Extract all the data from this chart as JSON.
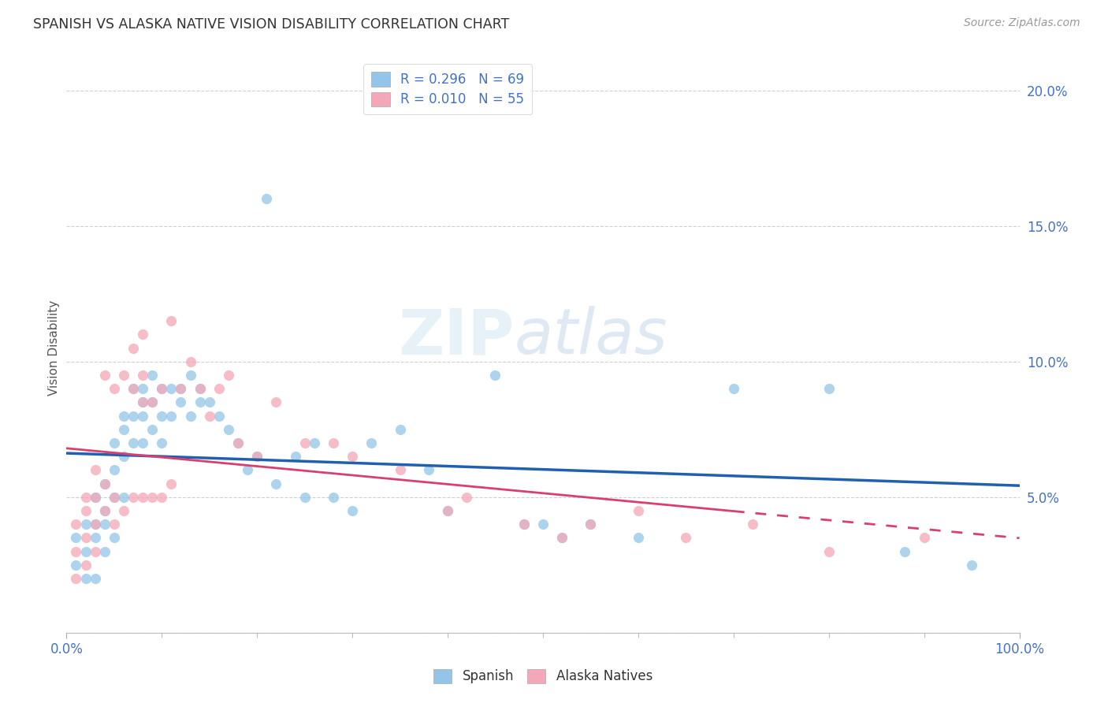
{
  "title": "SPANISH VS ALASKA NATIVE VISION DISABILITY CORRELATION CHART",
  "source": "Source: ZipAtlas.com",
  "ylabel": "Vision Disability",
  "xlim": [
    0,
    100
  ],
  "ylim": [
    0,
    21
  ],
  "ytick_positions": [
    0,
    5,
    10,
    15,
    20
  ],
  "ytick_labels": [
    "",
    "5.0%",
    "10.0%",
    "15.0%",
    "20.0%"
  ],
  "spanish_R": "0.296",
  "spanish_N": "69",
  "alaska_R": "0.010",
  "alaska_N": "55",
  "spanish_color": "#92C5E8",
  "alaska_color": "#F4A7B8",
  "spanish_line_color": "#2060B0",
  "alaska_line_color": "#D84070",
  "background_color": "#FFFFFF",
  "grid_color": "#BBBBBB",
  "spanish_x": [
    1,
    1,
    2,
    2,
    2,
    3,
    3,
    3,
    3,
    4,
    4,
    4,
    4,
    5,
    5,
    5,
    5,
    6,
    6,
    6,
    6,
    7,
    7,
    7,
    8,
    8,
    8,
    8,
    9,
    9,
    9,
    10,
    10,
    10,
    11,
    11,
    12,
    12,
    13,
    13,
    14,
    14,
    15,
    16,
    17,
    18,
    19,
    20,
    21,
    22,
    24,
    25,
    26,
    28,
    30,
    32,
    35,
    38,
    40,
    45,
    48,
    50,
    52,
    55,
    60,
    70,
    80,
    88,
    95
  ],
  "spanish_y": [
    2.5,
    3.5,
    2,
    3,
    4,
    2,
    3.5,
    4,
    5,
    3,
    4,
    4.5,
    5.5,
    3.5,
    5,
    6,
    7,
    5,
    6.5,
    7.5,
    8,
    7,
    8,
    9,
    7,
    8,
    8.5,
    9,
    7.5,
    8.5,
    9.5,
    7,
    8,
    9,
    8,
    9,
    8.5,
    9,
    8,
    9.5,
    8.5,
    9,
    8.5,
    8,
    7.5,
    7,
    6,
    6.5,
    16,
    5.5,
    6.5,
    5,
    7,
    5,
    4.5,
    7,
    7.5,
    6,
    4.5,
    9.5,
    4,
    4,
    3.5,
    4,
    3.5,
    9,
    9,
    3,
    2.5
  ],
  "alaska_x": [
    1,
    1,
    1,
    2,
    2,
    2,
    2,
    3,
    3,
    3,
    3,
    4,
    4,
    4,
    5,
    5,
    5,
    6,
    6,
    7,
    7,
    7,
    8,
    8,
    8,
    8,
    9,
    9,
    10,
    10,
    11,
    11,
    12,
    13,
    14,
    15,
    16,
    17,
    18,
    20,
    22,
    25,
    28,
    30,
    35,
    40,
    42,
    48,
    52,
    55,
    60,
    65,
    72,
    80,
    90
  ],
  "alaska_y": [
    2,
    3,
    4,
    2.5,
    3.5,
    4.5,
    5,
    3,
    4,
    5,
    6,
    4.5,
    5.5,
    9.5,
    4,
    5,
    9,
    4.5,
    9.5,
    5,
    9,
    10.5,
    5,
    8.5,
    9.5,
    11,
    5,
    8.5,
    5,
    9,
    5.5,
    11.5,
    9,
    10,
    9,
    8,
    9,
    9.5,
    7,
    6.5,
    8.5,
    7,
    7,
    6.5,
    6,
    4.5,
    5,
    4,
    3.5,
    4,
    4.5,
    3.5,
    4,
    3,
    3.5
  ]
}
